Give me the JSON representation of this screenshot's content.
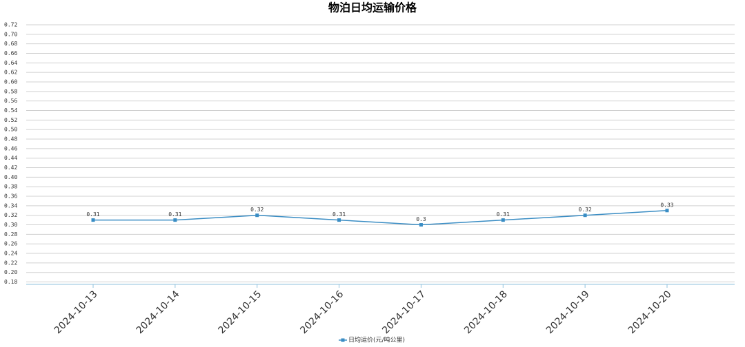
{
  "chart_data": {
    "type": "line",
    "title": "物泊日均运输价格",
    "categories": [
      "2024-10-13",
      "2024-10-14",
      "2024-10-15",
      "2024-10-16",
      "2024-10-17",
      "2024-10-18",
      "2024-10-19",
      "2024-10-20"
    ],
    "series": [
      {
        "name": "日均运价(元/吨公里)",
        "color": "#3a8dc4",
        "values": [
          0.31,
          0.31,
          0.32,
          0.31,
          0.3,
          0.31,
          0.32,
          0.33
        ]
      }
    ],
    "ylim": [
      0.175,
      0.72
    ],
    "yticks": [
      0.18,
      {
        "value": 0.2,
        "label": "0.20"
      },
      0.22,
      0.24,
      0.26,
      0.28,
      {
        "value": 0.3,
        "label": "0.30"
      },
      0.32,
      0.34,
      0.36,
      0.38,
      {
        "value": 0.4,
        "label": "0.40"
      },
      0.42,
      0.44,
      0.46,
      0.48,
      {
        "value": 0.5,
        "label": "0.50"
      },
      0.52,
      0.54,
      0.56,
      0.58,
      {
        "value": 0.6,
        "label": "0.60"
      },
      0.62,
      0.64,
      0.66,
      0.68,
      {
        "value": 0.7,
        "label": "0.70"
      },
      0.72
    ],
    "grid": true,
    "legend": "bottom"
  }
}
